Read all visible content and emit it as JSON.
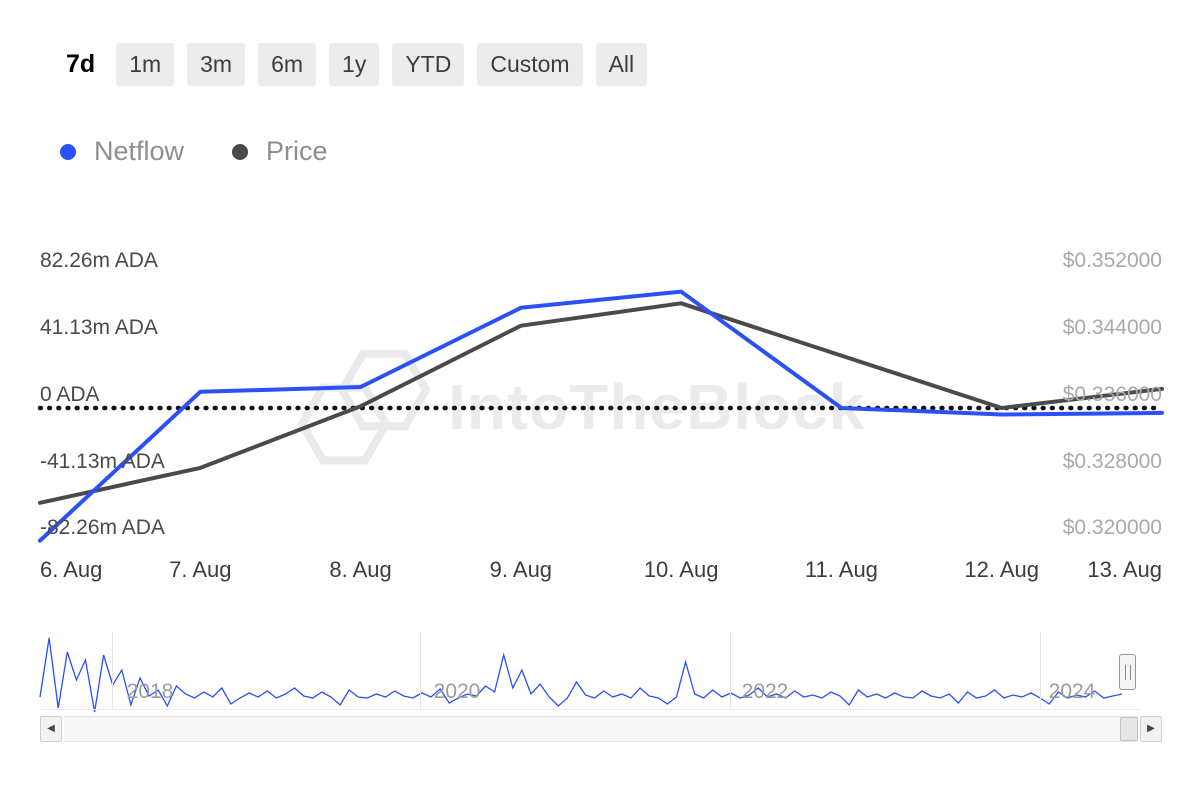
{
  "range_selector": {
    "options": [
      {
        "label": "7d",
        "selected": true
      },
      {
        "label": "1m"
      },
      {
        "label": "3m"
      },
      {
        "label": "6m"
      },
      {
        "label": "1y"
      },
      {
        "label": "YTD"
      },
      {
        "label": "Custom"
      },
      {
        "label": "All"
      }
    ]
  },
  "legend": [
    {
      "label": "Netflow",
      "color": "#2b50f6"
    },
    {
      "label": "Price",
      "color": "#4a4a4a"
    }
  ],
  "watermark": "IntoTheBlock",
  "chart_data": {
    "type": "line",
    "title": "",
    "x_labels": [
      "6. Aug",
      "7. Aug",
      "8. Aug",
      "9. Aug",
      "10. Aug",
      "11. Aug",
      "12. Aug",
      "13. Aug"
    ],
    "left_axis": {
      "unit": "ADA netflow (millions)",
      "tick_labels": [
        "82.26m ADA",
        "41.13m ADA",
        "0 ADA",
        "-41.13m ADA",
        "-82.26m ADA"
      ],
      "tick_values_m": [
        82.26,
        41.13,
        0,
        -41.13,
        -82.26
      ]
    },
    "right_axis": {
      "unit": "USD price",
      "tick_labels": [
        "$0.352000",
        "$0.344000",
        "$0.336000",
        "$0.328000",
        "$0.320000"
      ],
      "tick_values": [
        0.352,
        0.344,
        0.336,
        0.328,
        0.32
      ]
    },
    "zero_line": true,
    "series": [
      {
        "name": "Netflow",
        "axis": "left",
        "color": "#2b50f6",
        "values_m_ada": [
          -82,
          10,
          13,
          62,
          72,
          0,
          -4,
          -3
        ]
      },
      {
        "name": "Price",
        "axis": "right",
        "color": "#4a4a4a",
        "values_usd": [
          0.3246,
          0.3288,
          0.3362,
          0.3459,
          0.3486,
          0.3423,
          0.336,
          0.3383
        ]
      }
    ],
    "navigator": {
      "year_labels": [
        "2018",
        "2020",
        "2022",
        "2024"
      ],
      "series_color": "#2b50f6",
      "values": [
        3,
        62,
        -8,
        48,
        20,
        40,
        -12,
        45,
        15,
        30,
        -5,
        22,
        4,
        10,
        -6,
        14,
        6,
        2,
        8,
        3,
        12,
        -4,
        2,
        7,
        3,
        9,
        2,
        6,
        12,
        4,
        2,
        8,
        3,
        -5,
        10,
        3,
        2,
        6,
        3,
        9,
        4,
        2,
        7,
        3,
        11,
        -3,
        2,
        6,
        4,
        14,
        8,
        45,
        12,
        30,
        6,
        16,
        3,
        -6,
        2,
        18,
        5,
        2,
        9,
        3,
        6,
        2,
        12,
        4,
        2,
        -4,
        3,
        38,
        6,
        2,
        10,
        3,
        7,
        2,
        5,
        12,
        3,
        6,
        2,
        9,
        3,
        5,
        2,
        8,
        4,
        -5,
        10,
        3,
        6,
        2,
        7,
        3,
        2,
        9,
        4,
        2,
        6,
        -3,
        8,
        2,
        4,
        10,
        2,
        5,
        3,
        7,
        2,
        -4,
        8,
        2,
        5,
        3,
        9,
        2,
        4,
        6
      ]
    }
  },
  "icons": {
    "scroll_left": "◀",
    "scroll_right": "▶"
  }
}
